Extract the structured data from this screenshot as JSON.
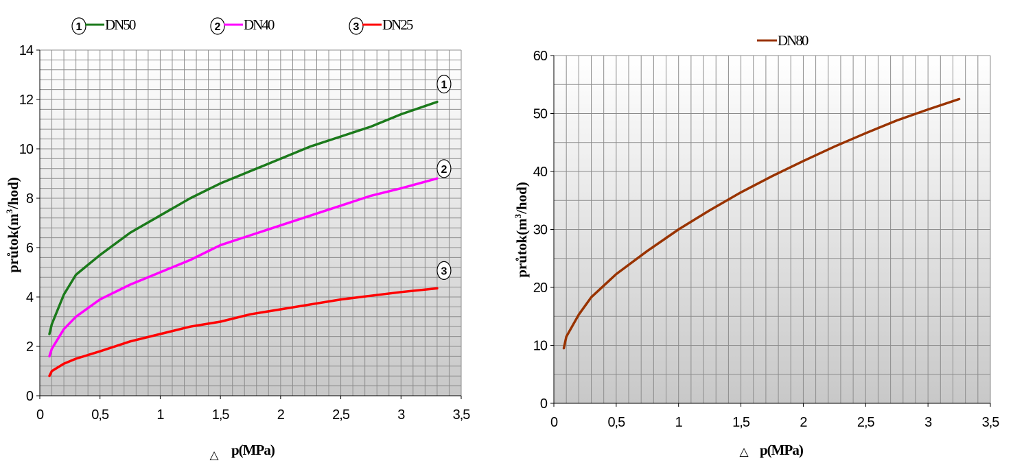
{
  "chart_data": [
    {
      "type": "line",
      "title": "",
      "xlabel_symbol": "△",
      "xlabel": "p(MPa)",
      "ylabel": "průtok(m3/hod)",
      "xlim": [
        0,
        3.5
      ],
      "ylim": [
        0,
        14
      ],
      "xticks": [
        "0",
        "0,5",
        "1",
        "1,5",
        "2",
        "2,5",
        "3",
        "3,5"
      ],
      "yticks": [
        "0",
        "2",
        "4",
        "6",
        "8",
        "10",
        "12",
        "14"
      ],
      "legend_position": "top",
      "grid": true,
      "series": [
        {
          "marker": "1",
          "name": "DN50",
          "color": "#1b7a1b",
          "x": [
            0.08,
            0.1,
            0.2,
            0.3,
            0.5,
            0.75,
            1.0,
            1.25,
            1.5,
            1.75,
            2.0,
            2.25,
            2.5,
            2.75,
            3.0,
            3.3
          ],
          "y": [
            2.5,
            2.9,
            4.1,
            4.9,
            5.7,
            6.6,
            7.3,
            8.0,
            8.6,
            9.1,
            9.6,
            10.1,
            10.5,
            10.9,
            11.4,
            11.9
          ]
        },
        {
          "marker": "2",
          "name": "DN40",
          "color": "#ff00ff",
          "x": [
            0.08,
            0.1,
            0.2,
            0.3,
            0.5,
            0.75,
            1.0,
            1.25,
            1.5,
            1.75,
            2.0,
            2.25,
            2.5,
            2.75,
            3.0,
            3.3
          ],
          "y": [
            1.6,
            1.9,
            2.7,
            3.2,
            3.9,
            4.5,
            5.0,
            5.5,
            6.1,
            6.5,
            6.9,
            7.3,
            7.7,
            8.1,
            8.4,
            8.8
          ],
          "label_y": 9.2
        },
        {
          "marker": "3",
          "name": "DN25",
          "color": "#ff0000",
          "x": [
            0.08,
            0.1,
            0.2,
            0.3,
            0.5,
            0.75,
            1.0,
            1.25,
            1.5,
            1.75,
            2.0,
            2.25,
            2.5,
            2.75,
            3.0,
            3.3
          ],
          "y": [
            0.8,
            1.0,
            1.3,
            1.5,
            1.8,
            2.2,
            2.5,
            2.8,
            3.0,
            3.3,
            3.5,
            3.7,
            3.9,
            4.05,
            4.2,
            4.35
          ]
        }
      ]
    },
    {
      "type": "line",
      "title": "",
      "xlabel_symbol": "△",
      "xlabel": "p(MPa)",
      "ylabel": "průtok(m3/hod)",
      "xlim": [
        0,
        3.5
      ],
      "ylim": [
        0,
        60
      ],
      "xticks": [
        "0",
        "0,5",
        "1",
        "1,5",
        "2",
        "2,5",
        "3",
        "3,5"
      ],
      "yticks": [
        "0",
        "10",
        "20",
        "30",
        "40",
        "50",
        "60"
      ],
      "legend_position": "top",
      "grid": true,
      "series": [
        {
          "name": "DN80",
          "color": "#993300",
          "x": [
            0.08,
            0.1,
            0.2,
            0.3,
            0.5,
            0.75,
            1.0,
            1.25,
            1.5,
            1.75,
            2.0,
            2.25,
            2.5,
            2.75,
            3.0,
            3.25
          ],
          "y": [
            9.5,
            11.5,
            15.3,
            18.3,
            22.3,
            26.3,
            30.0,
            33.3,
            36.4,
            39.2,
            41.8,
            44.3,
            46.6,
            48.8,
            50.7,
            52.5
          ]
        }
      ]
    }
  ]
}
